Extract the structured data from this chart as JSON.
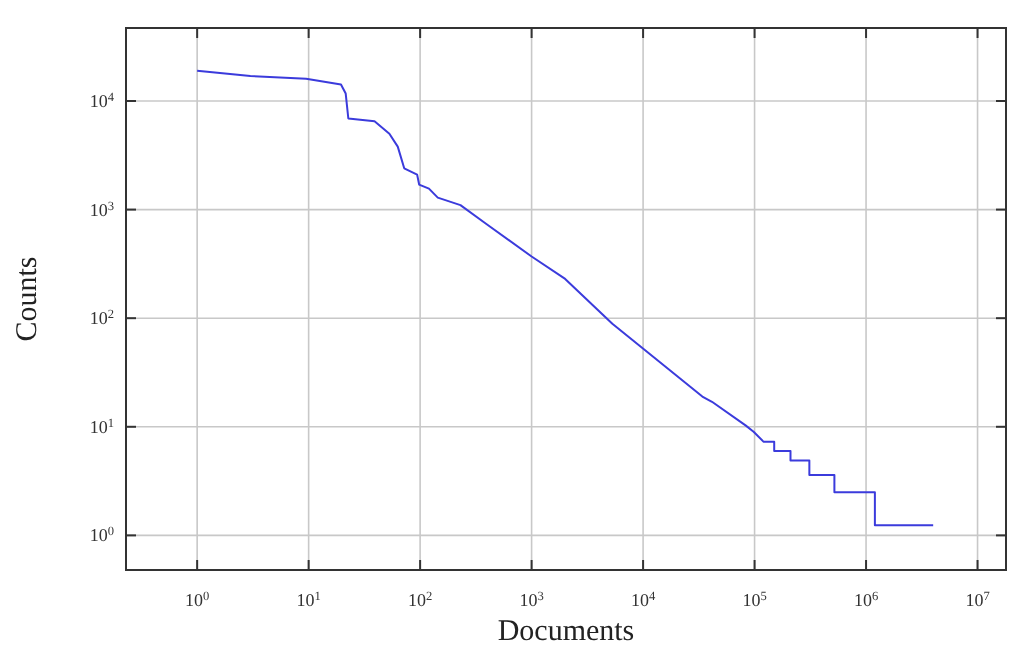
{
  "chart_data": {
    "type": "line",
    "xlabel": "Documents",
    "ylabel": "Counts",
    "log": "xy",
    "grid": true,
    "marker": "none",
    "line_style": "solid",
    "xlim": [
      0.23,
      18000000
    ],
    "ylim": [
      0.48,
      47000
    ],
    "xticks": [
      {
        "value": 1,
        "label": "10$^{0}$"
      },
      {
        "value": 10,
        "label": "10$^{1}$"
      },
      {
        "value": 100,
        "label": "10$^{2}$"
      },
      {
        "value": 1000,
        "label": "10$^{3}$"
      },
      {
        "value": 10000,
        "label": "10$^{4}$"
      },
      {
        "value": 100000,
        "label": "10$^{5}$"
      },
      {
        "value": 1000000,
        "label": "10$^{6}$"
      },
      {
        "value": 10000000,
        "label": "10$^{7}$"
      }
    ],
    "yticks": [
      {
        "value": 1,
        "label": "10$^{0}$"
      },
      {
        "value": 10,
        "label": "10$^{1}$"
      },
      {
        "value": 100,
        "label": "10$^{2}$"
      },
      {
        "value": 1000,
        "label": "10$^{3}$"
      },
      {
        "value": 10000,
        "label": "10$^{4}$"
      }
    ],
    "series": [
      {
        "color": "#3b3bdc",
        "x": [
          1,
          3,
          9.5,
          19.5,
          21.5,
          22.7,
          39,
          53,
          63,
          72,
          94,
          98,
          120,
          144,
          230,
          390,
          1000,
          2000,
          5300,
          34000,
          41500,
          83000,
          98000,
          120000,
          150000,
          150000,
          210000,
          210000,
          310000,
          310000,
          520000,
          520000,
          1200000,
          1200000,
          4000000
        ],
        "values": [
          19000,
          17000,
          16000,
          14200,
          11700,
          6900,
          6500,
          5000,
          3800,
          2400,
          2100,
          1700,
          1560,
          1290,
          1100,
          740,
          370,
          230,
          89,
          19,
          17,
          10.3,
          9,
          7.3,
          7.3,
          6,
          6,
          4.9,
          4.9,
          3.6,
          3.6,
          2.5,
          2.5,
          1.24,
          1.24
        ]
      }
    ]
  }
}
